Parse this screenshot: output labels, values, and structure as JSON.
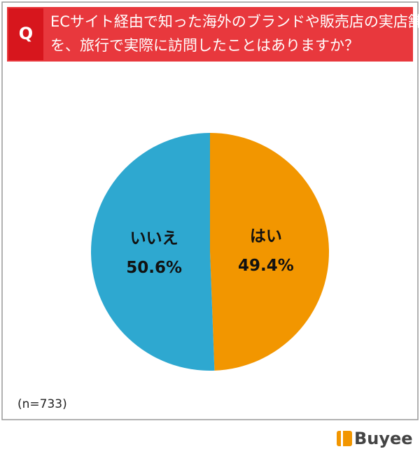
{
  "chart_data": {
    "type": "pie",
    "badge": "Q",
    "title": [
      "ECサイト経由で知った海外のブランドや販売店の実店舗",
      "を、旅行で実際に訪問したことはありますか？"
    ],
    "categories": [
      "はい",
      "いいえ"
    ],
    "values": [
      49.4,
      50.6
    ],
    "value_labels": [
      "49.4%",
      "50.6%"
    ],
    "colors": [
      "#f29600",
      "#2ea8d0"
    ],
    "note": "(n=733)",
    "brand": "Buyee"
  }
}
